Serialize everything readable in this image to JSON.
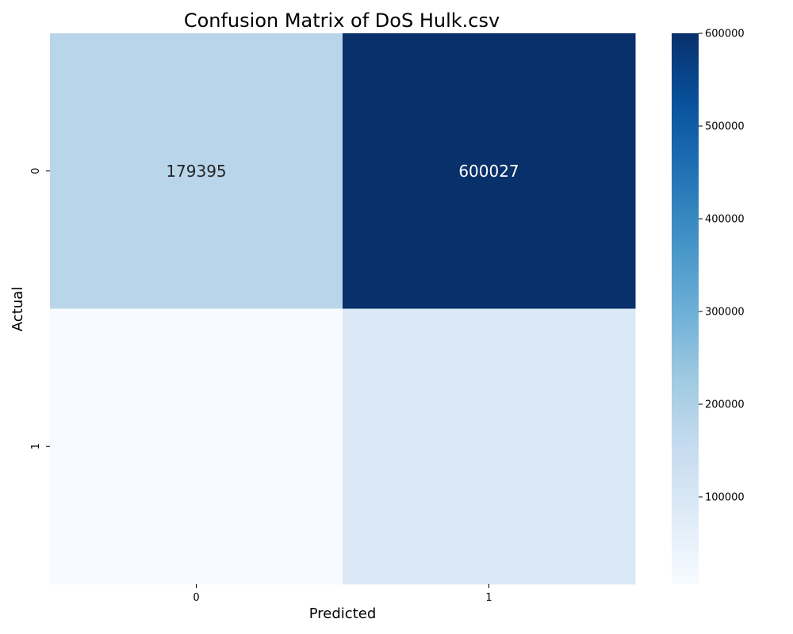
{
  "chart_data": {
    "type": "heatmap",
    "title": "Confusion Matrix of DoS Hulk.csv",
    "xlabel": "Predicted",
    "ylabel": "Actual",
    "x_categories": [
      "0",
      "1"
    ],
    "y_categories": [
      "0",
      "1"
    ],
    "values": [
      [
        179395,
        600027
      ],
      [
        6000,
        90000
      ]
    ],
    "annotations": [
      [
        "179395",
        "600027"
      ],
      [
        "",
        ""
      ]
    ],
    "colormap": "Blues",
    "colorbar": {
      "range": [
        6000,
        600027
      ],
      "ticks": [
        100000,
        200000,
        300000,
        400000,
        500000,
        600000
      ],
      "tick_labels": [
        "100000",
        "200000",
        "300000",
        "400000",
        "500000",
        "600000"
      ]
    }
  }
}
